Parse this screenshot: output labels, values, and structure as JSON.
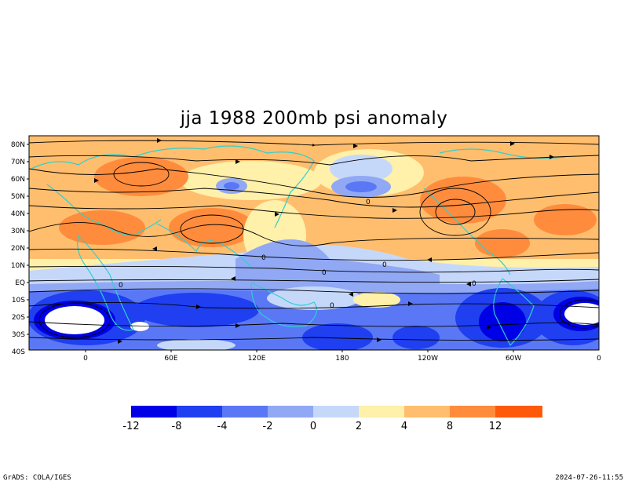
{
  "title": "jja 1988 200mb psi anomaly",
  "lat_labels": [
    "80N",
    "70N",
    "60N",
    "50N",
    "40N",
    "30N",
    "20N",
    "10N",
    "EQ",
    "10S",
    "20S",
    "30S",
    "40S"
  ],
  "lon_labels": [
    "0",
    "60E",
    "120E",
    "180",
    "120W",
    "60W",
    "0"
  ],
  "contour_labels": [
    "0",
    "0",
    "0",
    "0",
    "0",
    "0",
    "0"
  ],
  "colorbar": {
    "labels": [
      "-12",
      "-8",
      "-4",
      "-2",
      "0",
      "2",
      "4",
      "8",
      "12"
    ],
    "colors": [
      "#0000e6",
      "#1f3ff0",
      "#5a78f5",
      "#91a8f5",
      "#c6d8fa",
      "#fff0aa",
      "#ffbe6e",
      "#ff8c3c",
      "#ff5a0a"
    ]
  },
  "footer_left": "GrADS: COLA/IGES",
  "footer_right": "2024-07-26-11:55"
}
